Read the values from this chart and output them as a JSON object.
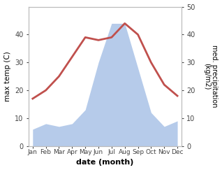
{
  "months": [
    "Jan",
    "Feb",
    "Mar",
    "Apr",
    "May",
    "Jun",
    "Jul",
    "Aug",
    "Sep",
    "Oct",
    "Nov",
    "Dec"
  ],
  "temperature": [
    17,
    20,
    25,
    32,
    39,
    38,
    39,
    44,
    40,
    30,
    22,
    18
  ],
  "precipitation": [
    6,
    8,
    7,
    8,
    13,
    30,
    44,
    44,
    28,
    12,
    7,
    9
  ],
  "temp_color": "#c0504d",
  "precip_color": "#aec6e8",
  "ylabel_left": "max temp (C)",
  "ylabel_right": "med. precipitation\n(kg/m2)",
  "xlabel": "date (month)",
  "ylim_left": [
    0,
    50
  ],
  "ylim_right": [
    0,
    50
  ],
  "left_yticks": [
    0,
    10,
    20,
    30,
    40
  ],
  "right_yticks": [
    0,
    10,
    20,
    30,
    40,
    50
  ],
  "temp_linewidth": 2.0,
  "bg_color": "#ffffff"
}
